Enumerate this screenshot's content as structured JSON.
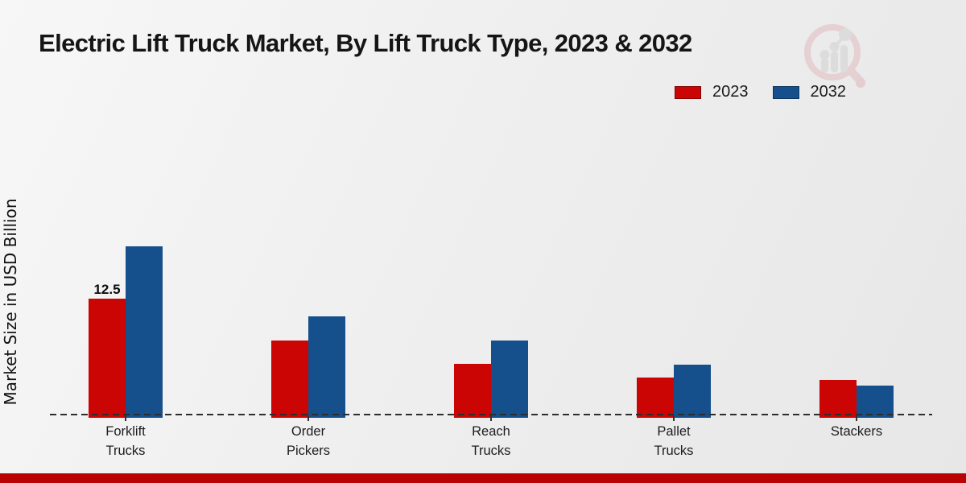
{
  "header": {
    "title": "Electric Lift Truck Market, By Lift Truck Type, 2023 & 2032"
  },
  "y_axis": {
    "label": "Market Size in USD Billion"
  },
  "legend": {
    "items": [
      {
        "label": "2023",
        "color": "#cb0404"
      },
      {
        "label": "2032",
        "color": "#15508c"
      }
    ]
  },
  "colors": {
    "series_2023": "#cb0404",
    "series_2032": "#15508c",
    "footer_bar": "#bb0202",
    "baseline": "#2d2d2d",
    "background": "#efefef"
  },
  "watermark": {
    "name": "market-research-magnifier-logo"
  },
  "chart_data": {
    "type": "bar",
    "title": "Electric Lift Truck Market, By Lift Truck Type, 2023 & 2032",
    "xlabel": "",
    "ylabel": "Market Size in USD Billion",
    "ylim": [
      0,
      20
    ],
    "grid": false,
    "legend_position": "top-right",
    "baseline_style": "dashed",
    "categories": [
      "Forklift Trucks",
      "Order Pickers",
      "Reach Trucks",
      "Pallet Trucks",
      "Stackers"
    ],
    "category_label_lines": [
      [
        "Forklift",
        "Trucks"
      ],
      [
        "Order",
        "Pickers"
      ],
      [
        "Reach",
        "Trucks"
      ],
      [
        "Pallet",
        "Trucks"
      ],
      [
        "Stackers"
      ]
    ],
    "series": [
      {
        "name": "2023",
        "color": "#cb0404",
        "values": [
          12.5,
          8.0,
          5.5,
          4.0,
          3.7
        ]
      },
      {
        "name": "2032",
        "color": "#15508c",
        "values": [
          18.1,
          10.6,
          8.0,
          5.4,
          3.1
        ]
      }
    ],
    "data_labels": [
      {
        "series_index": 0,
        "category_index": 0,
        "text": "12.5"
      }
    ]
  }
}
